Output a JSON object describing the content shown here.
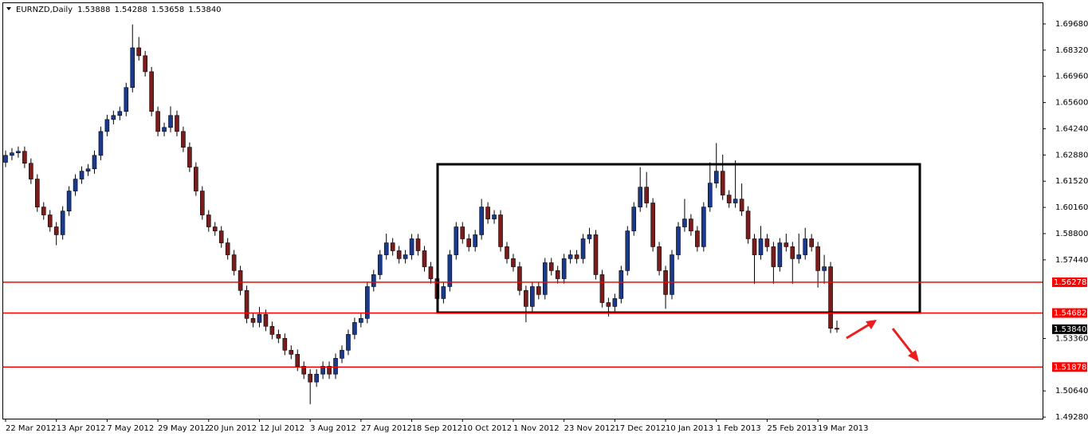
{
  "chart_data": {
    "type": "candlestick",
    "title": "EURNZD,Daily",
    "header_values": [
      "1.53888",
      "1.54288",
      "1.53658",
      "1.53840"
    ],
    "categories": [
      "22 Mar 2012",
      null,
      null,
      null,
      null,
      null,
      null,
      null,
      "13 Apr 2012",
      null,
      null,
      null,
      null,
      null,
      null,
      null,
      "7 May 2012",
      null,
      null,
      null,
      null,
      null,
      null,
      null,
      "29 May 2012",
      null,
      null,
      null,
      null,
      null,
      null,
      null,
      "20 Jun 2012",
      null,
      null,
      null,
      null,
      null,
      null,
      null,
      "12 Jul 2012",
      null,
      null,
      null,
      null,
      null,
      null,
      null,
      "3 Aug 2012",
      null,
      null,
      null,
      null,
      null,
      null,
      null,
      "27 Aug 2012",
      null,
      null,
      null,
      null,
      null,
      null,
      null,
      "18 Sep 2012",
      null,
      null,
      null,
      null,
      null,
      null,
      null,
      "10 Oct 2012",
      null,
      null,
      null,
      null,
      null,
      null,
      null,
      "1 Nov 2012",
      null,
      null,
      null,
      null,
      null,
      null,
      null,
      "23 Nov 2012",
      null,
      null,
      null,
      null,
      null,
      null,
      null,
      "17 Dec 2012",
      null,
      null,
      null,
      null,
      null,
      null,
      null,
      "10 Jan 2013",
      null,
      null,
      null,
      null,
      null,
      null,
      null,
      "1 Feb 2013",
      null,
      null,
      null,
      null,
      null,
      null,
      null,
      "25 Feb 2013",
      null,
      null,
      null,
      null,
      null,
      null,
      null,
      "19 Mar 2013",
      null,
      null,
      null
    ],
    "open": [
      1.625,
      1.6286,
      1.6299,
      1.6307,
      1.6245,
      1.6163,
      1.6018,
      1.5977,
      1.5915,
      1.5874,
      1.5997,
      1.6101,
      1.6163,
      1.6204,
      1.6216,
      1.6286,
      1.641,
      1.6472,
      1.6493,
      1.6514,
      1.6638,
      1.6844,
      1.6803,
      1.672,
      1.6514,
      1.641,
      1.6431,
      1.6493,
      1.641,
      1.6328,
      1.6225,
      1.6101,
      1.5977,
      1.5915,
      1.5894,
      1.5832,
      1.577,
      1.5688,
      1.5585,
      1.544,
      1.5419,
      1.5461,
      1.5399,
      1.5357,
      1.5337,
      1.5275,
      1.5254,
      1.5192,
      1.5151,
      1.511,
      1.5151,
      1.5192,
      1.5151,
      1.5233,
      1.5275,
      1.5357,
      1.5419,
      1.544,
      1.5605,
      1.5667,
      1.577,
      1.5832,
      1.5791,
      1.575,
      1.577,
      1.5853,
      1.5791,
      1.5708,
      1.5646,
      1.5543,
      1.5605,
      1.577,
      1.5915,
      1.5853,
      1.5812,
      1.5874,
      1.6018,
      1.5956,
      1.5977,
      1.5812,
      1.575,
      1.5708,
      1.5585,
      1.5502,
      1.5605,
      1.5564,
      1.5729,
      1.5688,
      1.5646,
      1.575,
      1.577,
      1.575,
      1.5853,
      1.5874,
      1.5667,
      1.5522,
      1.5502,
      1.5543,
      1.5688,
      1.5894,
      1.6018,
      1.6121,
      1.6039,
      1.5812,
      1.5688,
      1.5564,
      1.577,
      1.5915,
      1.5956,
      1.5894,
      1.5812,
      1.6018,
      1.6142,
      1.6204,
      1.608,
      1.6039,
      1.6059,
      1.5997,
      1.5853,
      1.577,
      1.5853,
      1.5812,
      1.5708,
      1.5832,
      1.5812,
      1.575,
      1.577,
      1.5853,
      1.5812,
      1.5688,
      1.5708,
      1.5389
    ],
    "high": [
      1.6311,
      1.6324,
      1.6332,
      1.6332,
      1.627,
      1.6188,
      1.6043,
      1.6002,
      1.594,
      1.6022,
      1.6126,
      1.6188,
      1.6229,
      1.6241,
      1.6311,
      1.6435,
      1.6497,
      1.6518,
      1.6539,
      1.6663,
      1.6965,
      1.69,
      1.6828,
      1.6745,
      1.6539,
      1.6456,
      1.654,
      1.6518,
      1.6435,
      1.6353,
      1.625,
      1.6126,
      1.6002,
      1.594,
      1.5919,
      1.5857,
      1.5795,
      1.5713,
      1.561,
      1.5465,
      1.55,
      1.5486,
      1.5424,
      1.5382,
      1.5362,
      1.53,
      1.5279,
      1.5217,
      1.5176,
      1.5176,
      1.5217,
      1.5217,
      1.5258,
      1.53,
      1.5382,
      1.5444,
      1.5465,
      1.563,
      1.5692,
      1.5795,
      1.588,
      1.5857,
      1.5816,
      1.5795,
      1.5878,
      1.5878,
      1.5816,
      1.5733,
      1.5671,
      1.563,
      1.5795,
      1.594,
      1.594,
      1.5878,
      1.5899,
      1.606,
      1.6043,
      1.6002,
      1.6002,
      1.5837,
      1.5775,
      1.5733,
      1.561,
      1.563,
      1.563,
      1.5754,
      1.5754,
      1.5713,
      1.5775,
      1.5795,
      1.5795,
      1.5878,
      1.591,
      1.5899,
      1.5692,
      1.5547,
      1.5568,
      1.5713,
      1.5919,
      1.6043,
      1.6225,
      1.62,
      1.6064,
      1.5837,
      1.5713,
      1.5795,
      1.594,
      1.606,
      1.5981,
      1.5919,
      1.6043,
      1.625,
      1.635,
      1.629,
      1.6105,
      1.626,
      1.614,
      1.6022,
      1.5878,
      1.592,
      1.5878,
      1.5837,
      1.5857,
      1.588,
      1.5837,
      1.588,
      1.591,
      1.5878,
      1.5837,
      1.577,
      1.5733,
      1.5429
    ],
    "low": [
      1.6225,
      1.6261,
      1.6274,
      1.622,
      1.6138,
      1.5993,
      1.5952,
      1.589,
      1.582,
      1.5849,
      1.5972,
      1.6076,
      1.6138,
      1.6179,
      1.6191,
      1.6261,
      1.6385,
      1.6447,
      1.6468,
      1.6489,
      1.6613,
      1.6778,
      1.6695,
      1.6489,
      1.6385,
      1.6385,
      1.6406,
      1.6385,
      1.6303,
      1.62,
      1.6076,
      1.5952,
      1.589,
      1.5869,
      1.5807,
      1.5745,
      1.5663,
      1.556,
      1.5415,
      1.5394,
      1.5394,
      1.5374,
      1.5332,
      1.5312,
      1.525,
      1.5229,
      1.5167,
      1.5126,
      1.4995,
      1.5085,
      1.5126,
      1.5126,
      1.5126,
      1.5208,
      1.525,
      1.5332,
      1.5394,
      1.5415,
      1.558,
      1.5642,
      1.5745,
      1.5766,
      1.5725,
      1.5725,
      1.5745,
      1.5766,
      1.5683,
      1.5621,
      1.55,
      1.5518,
      1.558,
      1.5745,
      1.5828,
      1.5787,
      1.5787,
      1.5849,
      1.5931,
      1.5931,
      1.5787,
      1.5725,
      1.5683,
      1.556,
      1.542,
      1.5477,
      1.5539,
      1.5539,
      1.5663,
      1.5621,
      1.5621,
      1.5725,
      1.5725,
      1.5725,
      1.5828,
      1.5642,
      1.5497,
      1.545,
      1.5477,
      1.5518,
      1.5663,
      1.5869,
      1.5993,
      1.6014,
      1.5787,
      1.5663,
      1.549,
      1.5539,
      1.5745,
      1.589,
      1.5869,
      1.5787,
      1.5787,
      1.5993,
      1.6117,
      1.6055,
      1.6014,
      1.6014,
      1.5972,
      1.5828,
      1.562,
      1.5745,
      1.5787,
      1.562,
      1.5683,
      1.5787,
      1.562,
      1.5725,
      1.5745,
      1.5787,
      1.56,
      1.562,
      1.5364,
      1.5366
    ],
    "close": [
      1.6286,
      1.6299,
      1.6307,
      1.6245,
      1.6163,
      1.6018,
      1.5977,
      1.5915,
      1.5874,
      1.5997,
      1.6101,
      1.6163,
      1.6204,
      1.6216,
      1.6286,
      1.641,
      1.6472,
      1.6493,
      1.6514,
      1.6638,
      1.6844,
      1.6803,
      1.672,
      1.6514,
      1.641,
      1.6431,
      1.6493,
      1.641,
      1.6328,
      1.6225,
      1.6101,
      1.5977,
      1.5915,
      1.5894,
      1.5832,
      1.577,
      1.5688,
      1.5585,
      1.544,
      1.5419,
      1.5461,
      1.5399,
      1.5357,
      1.5337,
      1.5275,
      1.5254,
      1.5192,
      1.5151,
      1.511,
      1.5151,
      1.5192,
      1.5151,
      1.5233,
      1.5275,
      1.5357,
      1.5419,
      1.544,
      1.5605,
      1.5667,
      1.577,
      1.5832,
      1.5791,
      1.575,
      1.577,
      1.5853,
      1.5791,
      1.5708,
      1.5646,
      1.5543,
      1.5605,
      1.577,
      1.5915,
      1.5853,
      1.5812,
      1.5874,
      1.6018,
      1.5956,
      1.5977,
      1.5812,
      1.575,
      1.5708,
      1.5585,
      1.5502,
      1.5605,
      1.5564,
      1.5729,
      1.5688,
      1.5646,
      1.575,
      1.577,
      1.575,
      1.5853,
      1.5874,
      1.5667,
      1.5522,
      1.5502,
      1.5543,
      1.5688,
      1.5894,
      1.6018,
      1.6121,
      1.6039,
      1.5812,
      1.5688,
      1.5564,
      1.577,
      1.5915,
      1.5956,
      1.5894,
      1.5812,
      1.6018,
      1.6142,
      1.6204,
      1.608,
      1.6039,
      1.6059,
      1.5997,
      1.5853,
      1.577,
      1.5853,
      1.5812,
      1.5708,
      1.5832,
      1.5812,
      1.575,
      1.577,
      1.5853,
      1.5812,
      1.5688,
      1.5708,
      1.5389,
      1.5384
    ],
    "up_color": "#1c3a8c",
    "down_color": "#7a1c1c",
    "wick_color": "#000000",
    "ylim": [
      1.492,
      1.7059
    ],
    "yticks": [
      {
        "value": 1.6968,
        "label": "1.69680"
      },
      {
        "value": 1.6832,
        "label": "1.68320"
      },
      {
        "value": 1.6696,
        "label": "1.66960"
      },
      {
        "value": 1.656,
        "label": "1.65600"
      },
      {
        "value": 1.6424,
        "label": "1.64240"
      },
      {
        "value": 1.6288,
        "label": "1.62880"
      },
      {
        "value": 1.6152,
        "label": "1.61520"
      },
      {
        "value": 1.6016,
        "label": "1.60160"
      },
      {
        "value": 1.588,
        "label": "1.58800"
      },
      {
        "value": 1.5744,
        "label": "1.57440"
      },
      {
        "value": 1.5336,
        "label": "1.53360"
      },
      {
        "value": 1.5064,
        "label": "1.50640"
      },
      {
        "value": 1.4928,
        "label": "1.49280"
      }
    ],
    "levels": [
      {
        "value": 1.56278,
        "label": "1.56278"
      },
      {
        "value": 1.54682,
        "label": "1.54682"
      },
      {
        "value": 1.51878,
        "label": "1.51878"
      }
    ],
    "level_color": "#ff0000",
    "last_price": {
      "value": 1.5384,
      "label": "1.53840"
    }
  }
}
